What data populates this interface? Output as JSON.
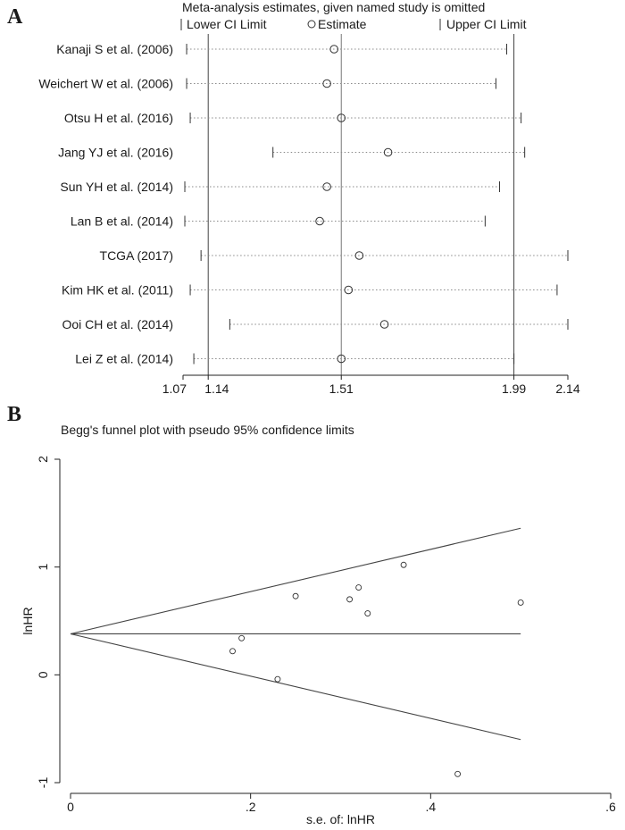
{
  "chart_data": [
    {
      "type": "forest",
      "panel_label": "A",
      "title": "Meta-analysis estimates, given named study is omitted",
      "legend": {
        "lower": "Lower CI Limit",
        "estimate": "Estimate",
        "upper": "Upper CI Limit"
      },
      "xlim": [
        1.07,
        2.14
      ],
      "xticks": [
        "1.07",
        "1.14",
        "1.51",
        "1.99",
        "2.14"
      ],
      "xtick_values": [
        1.07,
        1.14,
        1.51,
        1.99,
        2.14
      ],
      "reference_lines": [
        1.14,
        1.51,
        1.99
      ],
      "studies": [
        {
          "name": "Kanaji S et al. (2006)",
          "lower": 1.08,
          "estimate": 1.49,
          "upper": 1.97
        },
        {
          "name": "Weichert W et al. (2006)",
          "lower": 1.08,
          "estimate": 1.47,
          "upper": 1.94
        },
        {
          "name": "Otsu H et al. (2016)",
          "lower": 1.09,
          "estimate": 1.51,
          "upper": 2.01
        },
        {
          "name": "Jang YJ et al. (2016)",
          "lower": 1.32,
          "estimate": 1.64,
          "upper": 2.02
        },
        {
          "name": "Sun YH et al. (2014)",
          "lower": 1.075,
          "estimate": 1.47,
          "upper": 1.95
        },
        {
          "name": "Lan B et al. (2014)",
          "lower": 1.075,
          "estimate": 1.45,
          "upper": 1.91
        },
        {
          "name": "TCGA (2017)",
          "lower": 1.12,
          "estimate": 1.56,
          "upper": 2.14
        },
        {
          "name": "Kim HK et al. (2011)",
          "lower": 1.09,
          "estimate": 1.53,
          "upper": 2.11
        },
        {
          "name": "Ooi CH et al. (2014)",
          "lower": 1.2,
          "estimate": 1.63,
          "upper": 2.14
        },
        {
          "name": "Lei Z et al. (2014)",
          "lower": 1.1,
          "estimate": 1.51,
          "upper": 1.99
        }
      ]
    },
    {
      "type": "scatter",
      "panel_label": "B",
      "title": "Begg's funnel plot with pseudo 95% confidence limits",
      "xlabel": "s.e. of: lnHR",
      "ylabel": "lnHR",
      "xlim": [
        0,
        0.6
      ],
      "ylim": [
        -1,
        2
      ],
      "xticks": [
        "0",
        ".2",
        ".4",
        ".6"
      ],
      "xtick_values": [
        0,
        0.2,
        0.4,
        0.6
      ],
      "yticks": [
        "-1",
        "0",
        "1",
        "2"
      ],
      "ytick_values": [
        -1,
        0,
        1,
        2
      ],
      "pooled_estimate": 0.38,
      "funnel_x_max": 0.5,
      "points": [
        {
          "x": 0.18,
          "y": 0.22
        },
        {
          "x": 0.19,
          "y": 0.34
        },
        {
          "x": 0.23,
          "y": -0.04
        },
        {
          "x": 0.25,
          "y": 0.73
        },
        {
          "x": 0.31,
          "y": 0.7
        },
        {
          "x": 0.32,
          "y": 0.81
        },
        {
          "x": 0.33,
          "y": 0.57
        },
        {
          "x": 0.37,
          "y": 1.02
        },
        {
          "x": 0.43,
          "y": -0.92
        },
        {
          "x": 0.5,
          "y": 0.67
        }
      ]
    }
  ]
}
